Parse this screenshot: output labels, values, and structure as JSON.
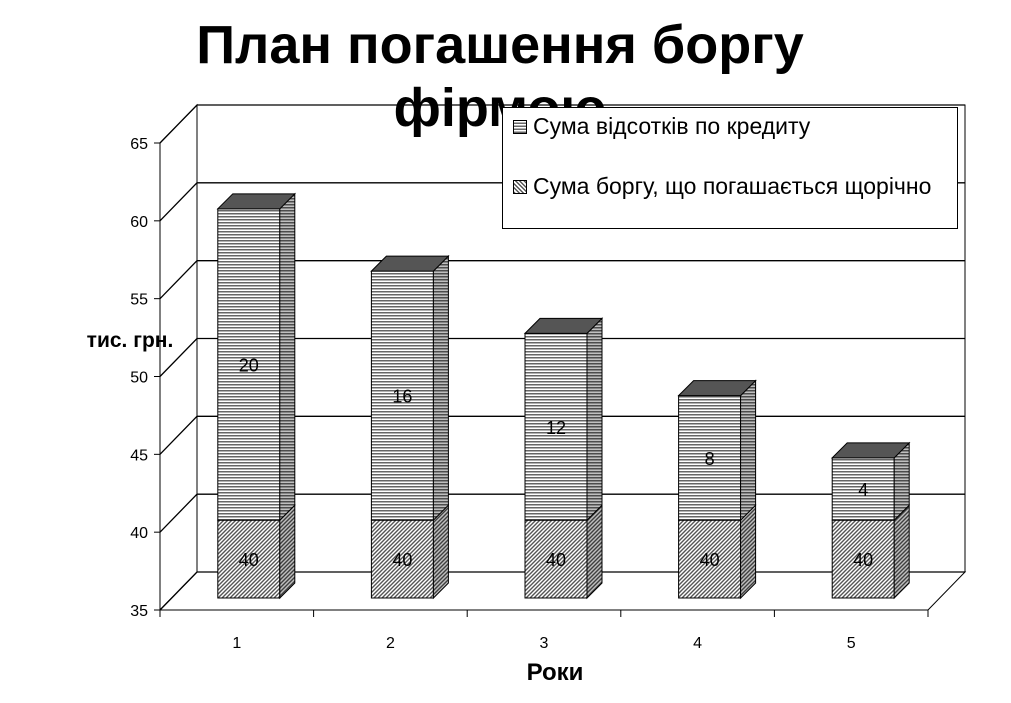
{
  "chart_data": {
    "type": "bar3d_stacked",
    "title": "План погашення боргу фірмою",
    "x_label": "Роки",
    "y_label": "тис. грн.",
    "categories": [
      "1",
      "2",
      "3",
      "4",
      "5"
    ],
    "series": [
      {
        "name": "Сума боргу, що  погашається щорічно",
        "color": "#9a9a9a",
        "values": [
          40,
          40,
          40,
          40,
          40
        ]
      },
      {
        "name": "Сума відсотків по кредиту",
        "color": "#8c8c8c",
        "values": [
          20,
          16,
          12,
          8,
          4
        ]
      }
    ],
    "ylim": [
      35,
      65
    ],
    "yticks": [
      35,
      40,
      45,
      50,
      55,
      60,
      65
    ],
    "grid": true
  }
}
